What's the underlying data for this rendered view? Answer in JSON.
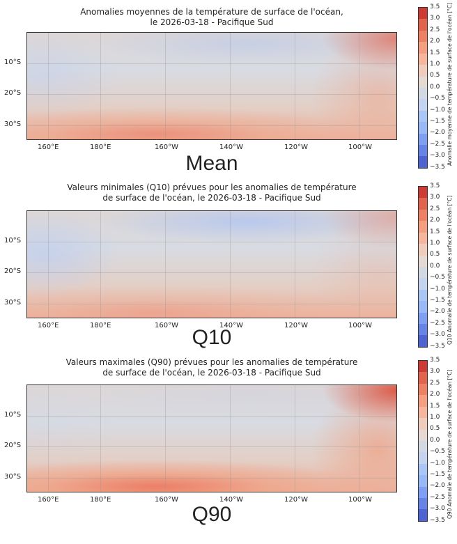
{
  "panels": [
    {
      "title_line1": "Anomalies moyennes de la température de surface de l'océan,",
      "title_line2": "le 2026-03-18 - Pacifique Sud",
      "label": "Mean",
      "colorbar_label": "Anomalie moyenne de température de surface de l'océan [°C]",
      "warmth": 0.6
    },
    {
      "title_line1": "Valeurs minimales (Q10) prévues pour les anomalies de température",
      "title_line2": "de surface de l'océan, le 2026-03-18 - Pacifique Sud",
      "label": "Q10",
      "colorbar_label": "Q10 Anomalie de température de surface de l'océan [°C]",
      "warmth": 0.3
    },
    {
      "title_line1": "Valeurs maximales (Q90) prévues pour les anomalies de température",
      "title_line2": "de surface de l'océan, le 2026-03-18 - Pacifique Sud",
      "label": "Q90",
      "colorbar_label": "Q90 Anomalie de température de surface de l'océan [°C]",
      "warmth": 0.9
    }
  ],
  "lon_ticks": [
    "160°E",
    "180°E",
    "160°W",
    "140°W",
    "120°W",
    "100°W"
  ],
  "lat_ticks": [
    "10°S",
    "20°S",
    "30°S"
  ],
  "colorbar_ticks": [
    "3.5",
    "3.0",
    "2.5",
    "2.0",
    "1.5",
    "1.0",
    "0.5",
    "0.0",
    "−0.5",
    "−1.0",
    "−1.5",
    "−2.0",
    "−2.5",
    "−3.0",
    "−3.5"
  ],
  "colorbar_colors": [
    "#cc3b34",
    "#e0644e",
    "#ec8164",
    "#f49f80",
    "#f6b59c",
    "#efccbb",
    "#e4d9d3",
    "#d3d9e3",
    "#c3d3f0",
    "#aac6f7",
    "#98b8f8",
    "#7f9ff3",
    "#6684e6",
    "#4e64d3"
  ]
}
